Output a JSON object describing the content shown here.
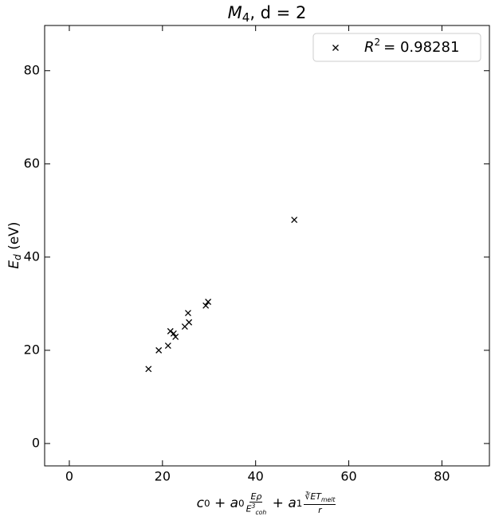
{
  "chart_data": {
    "type": "scatter",
    "title": {
      "var": "M",
      "sub": "4",
      "rest": ", d = 2"
    },
    "xlabel": {
      "term0": [
        "c",
        "0"
      ],
      "plus1": "+",
      "term1": [
        "a",
        "0"
      ],
      "frac1": {
        "num": "Eρ",
        "den": [
          "E",
          "3",
          "coh"
        ]
      },
      "plus2": "+",
      "term2": [
        "a",
        "1"
      ],
      "frac2": {
        "num": [
          "∛E",
          "T",
          "melt"
        ],
        "den": "r"
      }
    },
    "ylabel": {
      "var": "E",
      "sub": "d",
      "rest": " (eV)"
    },
    "series": [
      {
        "name": {
          "var": "R",
          "sup": "2",
          "rest": "=  0.98281"
        },
        "color": "#000000",
        "marker": "x",
        "x": [
          17,
          19.2,
          21.2,
          21.7,
          22.4,
          22.8,
          24.8,
          25.7,
          25.5,
          29.3,
          29.8,
          48.3
        ],
        "values": [
          16,
          20,
          21,
          24.1,
          23.6,
          22.9,
          25.1,
          26,
          28,
          29.6,
          30.4,
          48
        ]
      }
    ],
    "xlim": [
      -5.3,
      90.2
    ],
    "ylim": [
      -4.8,
      89.7
    ],
    "xticks": [
      0,
      20,
      40,
      60,
      80
    ],
    "yticks": [
      0,
      20,
      40,
      60,
      80
    ],
    "grid": false,
    "legend_position": "upper right"
  }
}
